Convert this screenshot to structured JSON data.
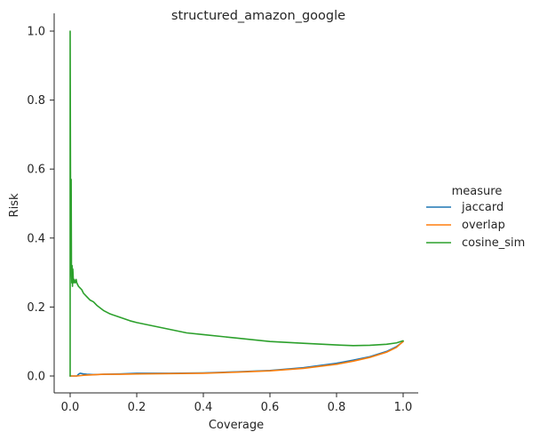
{
  "chart_data": {
    "type": "line",
    "title": "structured_amazon_google",
    "xlabel": "Coverage",
    "ylabel": "Risk",
    "xlim": [
      -0.03,
      1.05
    ],
    "ylim": [
      -0.05,
      1.05
    ],
    "x_ticks": [
      "0.0",
      "0.2",
      "0.4",
      "0.6",
      "0.8",
      "1.0"
    ],
    "y_ticks": [
      "0.0",
      "0.2",
      "0.4",
      "0.6",
      "0.8",
      "1.0"
    ],
    "grid": false,
    "legend": {
      "title": "measure",
      "placement": "right"
    },
    "series": [
      {
        "name": "jaccard",
        "color": "#1f77b4",
        "x": [
          0.0,
          0.005,
          0.01,
          0.02,
          0.025,
          0.03,
          0.04,
          0.05,
          0.07,
          0.1,
          0.15,
          0.2,
          0.3,
          0.4,
          0.5,
          0.6,
          0.7,
          0.8,
          0.85,
          0.9,
          0.95,
          0.98,
          1.0
        ],
        "y": [
          0.0,
          0.0,
          0.0,
          0.0,
          0.005,
          0.008,
          0.006,
          0.005,
          0.004,
          0.005,
          0.006,
          0.008,
          0.008,
          0.009,
          0.012,
          0.016,
          0.024,
          0.037,
          0.046,
          0.056,
          0.071,
          0.085,
          0.1
        ]
      },
      {
        "name": "overlap",
        "color": "#ff7f0e",
        "x": [
          0.0,
          0.01,
          0.02,
          0.03,
          0.04,
          0.06,
          0.08,
          0.1,
          0.15,
          0.2,
          0.3,
          0.4,
          0.5,
          0.6,
          0.7,
          0.8,
          0.85,
          0.9,
          0.95,
          0.98,
          1.0
        ],
        "y": [
          0.0,
          0.0,
          0.0,
          0.001,
          0.002,
          0.003,
          0.004,
          0.005,
          0.005,
          0.006,
          0.007,
          0.008,
          0.011,
          0.015,
          0.022,
          0.034,
          0.043,
          0.054,
          0.069,
          0.083,
          0.1
        ]
      },
      {
        "name": "cosine_sim",
        "color": "#2ca02c",
        "x": [
          0.0,
          0.0,
          0.001,
          0.002,
          0.003,
          0.004,
          0.005,
          0.006,
          0.007,
          0.008,
          0.01,
          0.012,
          0.015,
          0.018,
          0.02,
          0.025,
          0.03,
          0.035,
          0.04,
          0.05,
          0.06,
          0.07,
          0.08,
          0.1,
          0.12,
          0.15,
          0.18,
          0.2,
          0.25,
          0.3,
          0.35,
          0.4,
          0.5,
          0.6,
          0.7,
          0.8,
          0.85,
          0.9,
          0.95,
          0.98,
          1.0
        ],
        "y": [
          0.0,
          1.0,
          0.6,
          0.37,
          0.57,
          0.3,
          0.27,
          0.32,
          0.26,
          0.31,
          0.27,
          0.28,
          0.27,
          0.28,
          0.27,
          0.26,
          0.255,
          0.25,
          0.24,
          0.23,
          0.22,
          0.215,
          0.205,
          0.19,
          0.18,
          0.17,
          0.16,
          0.155,
          0.145,
          0.135,
          0.125,
          0.12,
          0.11,
          0.1,
          0.095,
          0.09,
          0.088,
          0.089,
          0.092,
          0.096,
          0.102
        ]
      }
    ]
  }
}
